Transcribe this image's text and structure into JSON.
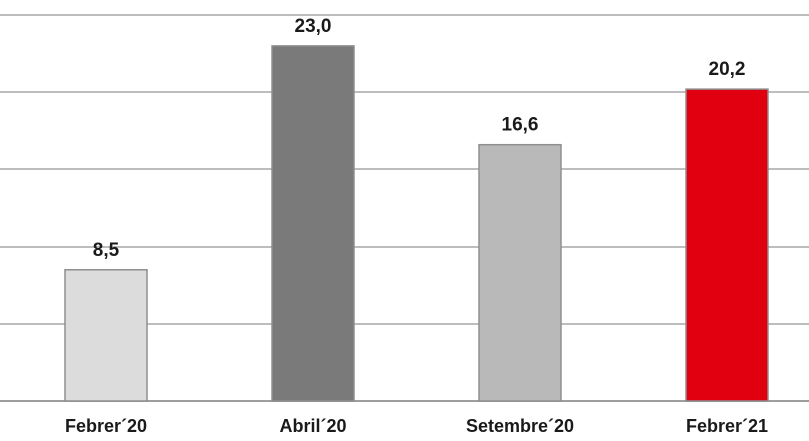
{
  "chart_data": {
    "type": "bar",
    "title": "",
    "xlabel": "",
    "ylabel": "",
    "categories": [
      "Febrer´20",
      "Abril´20",
      "Setembre´20",
      "Febrer´21"
    ],
    "values": [
      8.5,
      23.0,
      16.6,
      20.2
    ],
    "value_labels": [
      "8,5",
      "23,0",
      "16,6",
      "20,2"
    ],
    "bar_colors": [
      "#dcdcdc",
      "#7a7a7a",
      "#b9b9b9",
      "#e0000f"
    ],
    "ylim": [
      0,
      25
    ],
    "grid_values": [
      0,
      5,
      10,
      15,
      20,
      25
    ],
    "grid": true,
    "legend": "none"
  }
}
